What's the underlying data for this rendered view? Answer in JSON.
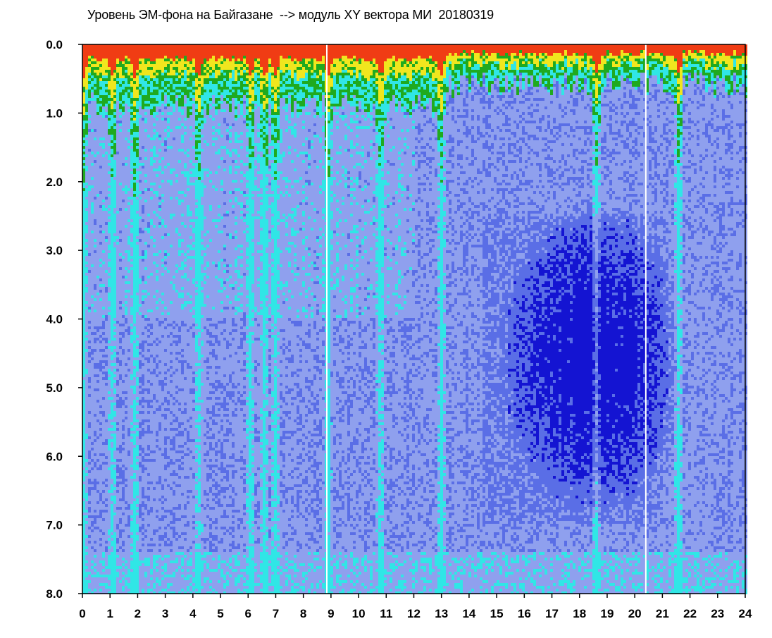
{
  "chart_data": {
    "type": "heatmap",
    "title": "Уровень ЭМ-фона на Байгазане  --> модуль XY вектора МИ  20180319",
    "xlabel": "",
    "ylabel": "",
    "xlim": [
      0,
      24
    ],
    "ylim": [
      0.0,
      8.0
    ],
    "y_inverted": true,
    "grid": false,
    "x_ticks": [
      "0",
      "1",
      "2",
      "3",
      "4",
      "5",
      "6",
      "7",
      "8",
      "9",
      "10",
      "11",
      "12",
      "13",
      "14",
      "15",
      "16",
      "17",
      "18",
      "19",
      "20",
      "21",
      "22",
      "23",
      "24"
    ],
    "y_ticks": [
      "0.0",
      "1.0",
      "2.0",
      "3.0",
      "4.0",
      "5.0",
      "6.0",
      "7.0",
      "8.0"
    ],
    "colormap": [
      "#1414d2",
      "#5a6ee6",
      "#8fa0ee",
      "#30e6e6",
      "#1faa1f",
      "#f0e61e",
      "#f03c14"
    ],
    "background_color": "#ffffff",
    "bright_bands_hours": [
      0.05,
      1.1,
      1.9,
      4.2,
      6.1,
      6.6,
      7.0,
      8.9,
      10.8,
      13.0,
      18.6,
      21.6
    ],
    "white_gap_hours": [
      8.85,
      20.4
    ],
    "dark_blob_center": {
      "hour": 18.5,
      "value": 4.6
    }
  }
}
